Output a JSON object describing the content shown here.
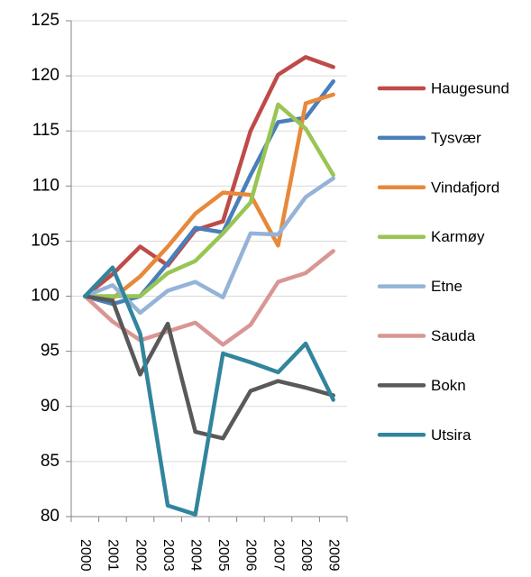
{
  "chart_data": {
    "type": "line",
    "categories": [
      "2000",
      "2001",
      "2002",
      "2003",
      "2004",
      "2005",
      "2006",
      "2007",
      "2008",
      "2009"
    ],
    "ylim": [
      80,
      125
    ],
    "yticks": [
      80,
      85,
      90,
      95,
      100,
      105,
      110,
      115,
      120,
      125
    ],
    "grid": true,
    "legend": "right",
    "series": [
      {
        "name": "Haugesund",
        "color": "#be4b48",
        "values": [
          100,
          102,
          104.5,
          102.8,
          106,
          106.8,
          115,
          120.1,
          121.7,
          120.8
        ]
      },
      {
        "name": "Tysvær",
        "color": "#4a7ebb",
        "values": [
          100,
          99.3,
          100,
          103,
          106.2,
          105.8,
          111,
          115.8,
          116.2,
          119.5
        ]
      },
      {
        "name": "Vindafjord",
        "color": "#e8883a",
        "values": [
          100,
          99.8,
          101.8,
          104.5,
          107.5,
          109.4,
          109.2,
          104.6,
          117.5,
          118.3
        ]
      },
      {
        "name": "Karmøy",
        "color": "#98c554",
        "values": [
          100,
          100,
          100,
          102.1,
          103.2,
          105.7,
          108.5,
          117.4,
          115.2,
          111
        ]
      },
      {
        "name": "Etne",
        "color": "#95b3d7",
        "values": [
          100,
          101,
          98.5,
          100.5,
          101.3,
          99.9,
          105.7,
          105.6,
          109,
          110.7
        ]
      },
      {
        "name": "Sauda",
        "color": "#d99694",
        "values": [
          100,
          97.7,
          96,
          96.8,
          97.6,
          95.6,
          97.4,
          101.3,
          102.1,
          104.1
        ]
      },
      {
        "name": "Bokn",
        "color": "#595959",
        "values": [
          100,
          99.6,
          92.9,
          97.5,
          87.7,
          87.1,
          91.4,
          92.3,
          91.7,
          91
        ]
      },
      {
        "name": "Utsira",
        "color": "#31859c",
        "values": [
          100,
          102.6,
          96.6,
          81,
          80.2,
          94.8,
          94,
          93.1,
          95.7,
          90.6
        ]
      }
    ]
  }
}
